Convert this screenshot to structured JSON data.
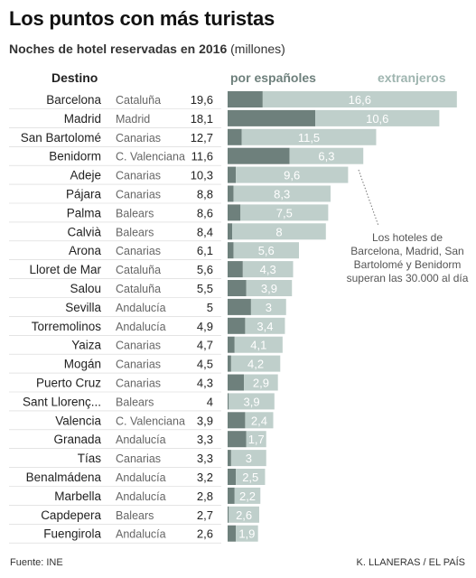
{
  "title": "Los puntos con más turistas",
  "subtitle_bold": "Noches de hotel reservadas en 2016",
  "subtitle_rest": " (millones)",
  "headers": {
    "destino": "Destino",
    "espanoles": "por españoles",
    "extranjeros": "extranjeros"
  },
  "note": "Los hoteles de Barcelona, Madrid, San Bartolomé y Benidorm superan las 30.000 al día",
  "source": "Fuente: INE",
  "credit": "K. LLANERAS / EL PAÍS",
  "colors": {
    "espanoles": "#6e807c",
    "extranjeros": "#bfcfcb",
    "row_separator": "#d4d4d4"
  },
  "chart_data": {
    "type": "bar",
    "orientation": "horizontal",
    "stacked": true,
    "categories": [
      "Barcelona",
      "Madrid",
      "San Bartolomé",
      "Benidorm",
      "Adeje",
      "Pájara",
      "Palma",
      "Calvià",
      "Arona",
      "Lloret de Mar",
      "Salou",
      "Sevilla",
      "Torremolinos",
      "Yaiza",
      "Mogán",
      "Puerto Cruz",
      "Sant Llorenç...",
      "Valencia",
      "Granada",
      "Tías",
      "Benalmádena",
      "Marbella",
      "Capdepera",
      "Fuengirola"
    ],
    "regions": [
      "Cataluña",
      "Madrid",
      "Canarias",
      "C. Valenciana",
      "Canarias",
      "Canarias",
      "Balears",
      "Balears",
      "Canarias",
      "Cataluña",
      "Cataluña",
      "Andalucía",
      "Andalucía",
      "Canarias",
      "Canarias",
      "Canarias",
      "Balears",
      "C. Valenciana",
      "Andalucía",
      "Canarias",
      "Andalucía",
      "Andalucía",
      "Balears",
      "Andalucía"
    ],
    "totals": [
      "19,6",
      "18,1",
      "12,7",
      "11,6",
      "10,3",
      "8,8",
      "8,6",
      "8,4",
      "6,1",
      "5,6",
      "5,5",
      "5",
      "4,9",
      "4,7",
      "4,5",
      "4,3",
      "4",
      "3,9",
      "3,3",
      "3,3",
      "3,2",
      "2,8",
      "2,7",
      "2,6"
    ],
    "series": [
      {
        "name": "por españoles",
        "values": [
          3.0,
          7.5,
          1.2,
          5.3,
          0.7,
          0.5,
          1.1,
          0.4,
          0.5,
          1.3,
          1.6,
          2.0,
          1.5,
          0.6,
          0.3,
          1.4,
          0.1,
          1.5,
          1.6,
          0.3,
          0.7,
          0.6,
          0.1,
          0.7
        ]
      },
      {
        "name": "extranjeros",
        "values": [
          16.6,
          10.6,
          11.5,
          6.3,
          9.6,
          8.3,
          7.5,
          8,
          5.6,
          4.3,
          3.9,
          3,
          3.4,
          4.1,
          4.2,
          2.9,
          3.9,
          2.4,
          1.7,
          3,
          2.5,
          2.2,
          2.6,
          1.9
        ]
      }
    ],
    "extranjeros_labels": [
      "16,6",
      "10,6",
      "11,5",
      "6,3",
      "9,6",
      "8,3",
      "7,5",
      "8",
      "5,6",
      "4,3",
      "3,9",
      "3",
      "3,4",
      "4,1",
      "4,2",
      "2,9",
      "3,9",
      "2,4",
      "1,7",
      "3",
      "2,5",
      "2,2",
      "2,6",
      "1,9"
    ],
    "xlabel": "",
    "ylabel": ""
  }
}
